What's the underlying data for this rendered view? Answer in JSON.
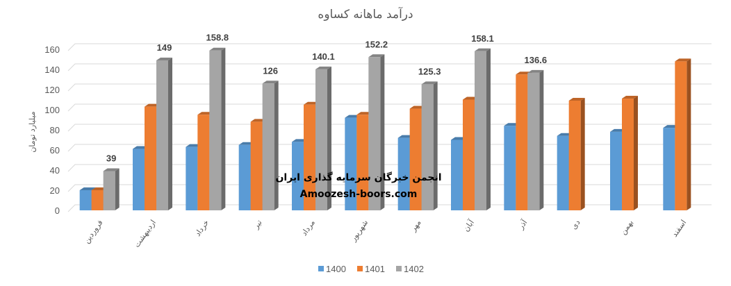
{
  "chart_data": {
    "type": "bar",
    "title": "درآمد ماهانه کساوه",
    "ylabel": "میلیارد تومان",
    "xlabel": "",
    "ylim": [
      0,
      160
    ],
    "yticks": [
      "0",
      "20",
      "40",
      "60",
      "80",
      "100",
      "120",
      "140",
      "160"
    ],
    "grid": true,
    "legend_position": "bottom",
    "categories": [
      "فروردین",
      "اردیبهشت",
      "خرداد",
      "تیر",
      "مرداد",
      "شهریور",
      "مهر",
      "آبان",
      "آذر",
      "دی",
      "بهمن",
      "اسفند"
    ],
    "series": [
      {
        "name": "1400",
        "color": "#5B9BD5",
        "values": [
          20,
          61,
          63,
          65,
          68,
          92,
          72,
          70,
          84,
          74,
          78,
          82
        ]
      },
      {
        "name": "1401",
        "color": "#ED7D31",
        "values": [
          20,
          103,
          95,
          88,
          105,
          95,
          101,
          110,
          135,
          109,
          111,
          148
        ]
      },
      {
        "name": "1402",
        "color": "#A5A5A5",
        "values": [
          39,
          149,
          158.8,
          126,
          140.1,
          152.2,
          125.3,
          158.1,
          136.6,
          null,
          null,
          null
        ]
      }
    ],
    "data_labels_series": "1402",
    "data_labels": [
      "39",
      "149",
      "158.8",
      "126",
      "140.1",
      "152.2",
      "125.3",
      "158.1",
      "136.6"
    ]
  },
  "watermark": {
    "line1": "انجمن خبرگان سرمایه گذاری ایران",
    "line2": "Amoozesh-boors.com"
  }
}
